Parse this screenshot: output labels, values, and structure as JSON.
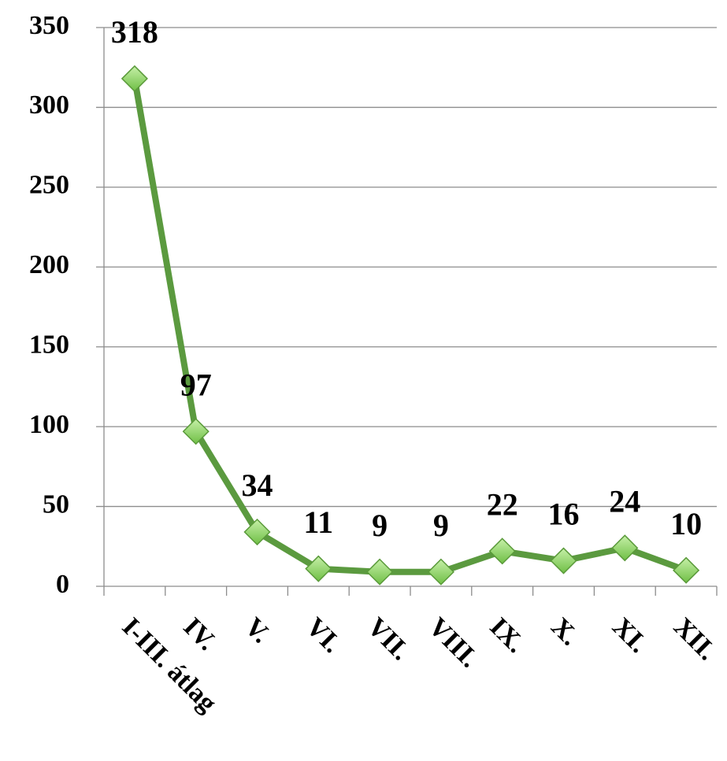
{
  "chart_data": {
    "type": "line",
    "categories": [
      "I-III. átlag",
      "IV.",
      "V.",
      "VI.",
      "VII.",
      "VIII.",
      "IX.",
      "X.",
      "XI.",
      "XII."
    ],
    "values": [
      318,
      97,
      34,
      11,
      9,
      9,
      22,
      16,
      24,
      10
    ],
    "color": "#5b9a3f",
    "marker_color": "#8fd36b",
    "ylim": [
      0,
      350
    ],
    "yticks": [
      0,
      50,
      100,
      150,
      200,
      250,
      300,
      350
    ],
    "grid": true
  }
}
